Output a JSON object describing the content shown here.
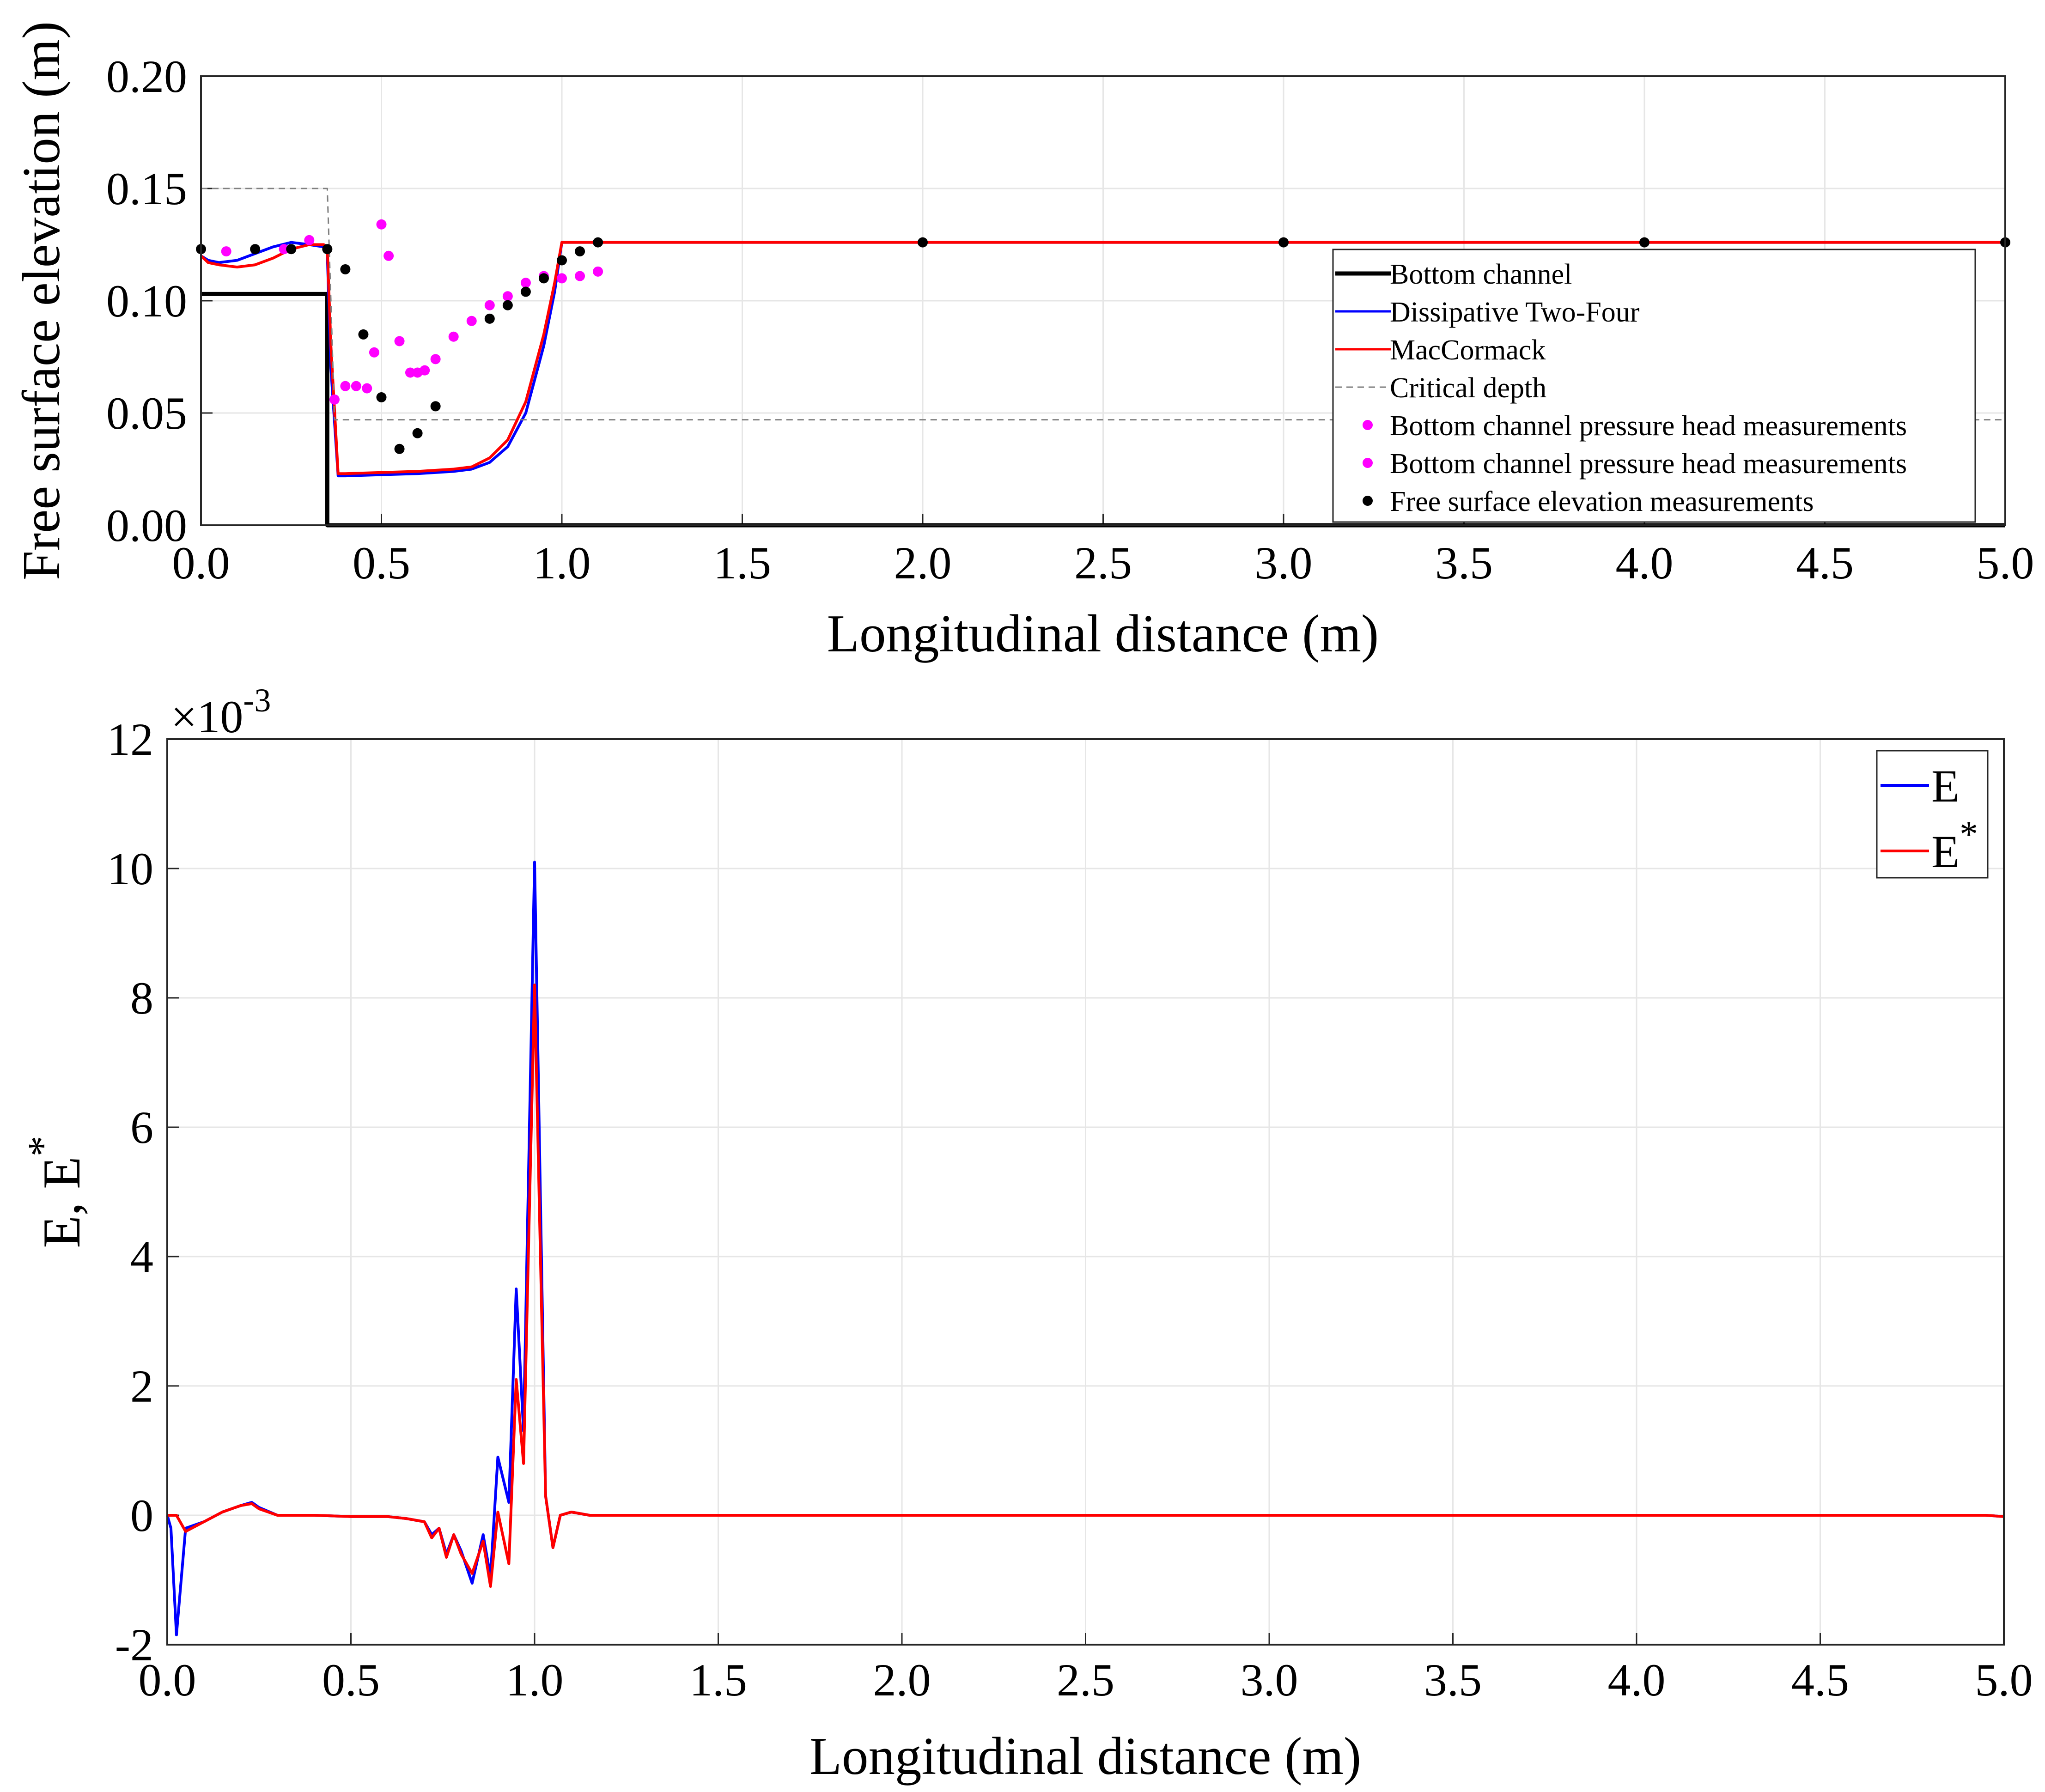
{
  "chart_data": [
    {
      "type": "line",
      "title": "",
      "xlabel": "Longitudinal distance (m)",
      "ylabel": "Free surface elevation (m)",
      "xlim": [
        0,
        5
      ],
      "ylim": [
        0,
        0.2
      ],
      "xticks": [
        0,
        0.5,
        1,
        1.5,
        2,
        2.5,
        3,
        3.5,
        4,
        4.5,
        5
      ],
      "xtick_labels": [
        "0.0",
        "0.5",
        "1.0",
        "1.5",
        "2.0",
        "2.5",
        "3.0",
        "3.5",
        "4.0",
        "4.5",
        "5.0"
      ],
      "yticks": [
        0,
        0.05,
        0.1,
        0.15,
        0.2
      ],
      "ytick_labels": [
        "0.00",
        "0.05",
        "0.10",
        "0.15",
        "0.20"
      ],
      "grid": true,
      "legend_position": "right",
      "series": [
        {
          "name": "Bottom channel",
          "color": "#000000",
          "style": "solid-thick",
          "x": [
            0,
            0.35,
            0.35,
            5
          ],
          "y": [
            0.103,
            0.103,
            0,
            0
          ]
        },
        {
          "name": "Dissipative Two-Four",
          "color": "#0000ff",
          "style": "solid",
          "x": [
            0,
            0.02,
            0.05,
            0.1,
            0.15,
            0.2,
            0.25,
            0.3,
            0.34,
            0.35,
            0.36,
            0.38,
            0.4,
            0.5,
            0.6,
            0.7,
            0.75,
            0.8,
            0.85,
            0.9,
            0.95,
            0.98,
            1.0,
            1.1,
            2,
            3,
            4,
            5
          ],
          "y": [
            0.12,
            0.118,
            0.117,
            0.118,
            0.121,
            0.124,
            0.126,
            0.125,
            0.124,
            0.121,
            0.07,
            0.022,
            0.022,
            0.0225,
            0.023,
            0.024,
            0.025,
            0.028,
            0.035,
            0.05,
            0.08,
            0.104,
            0.126,
            0.126,
            0.126,
            0.126,
            0.126,
            0.126
          ]
        },
        {
          "name": "MacCormack",
          "color": "#ff0000",
          "style": "solid",
          "x": [
            0,
            0.02,
            0.05,
            0.1,
            0.15,
            0.2,
            0.25,
            0.3,
            0.34,
            0.35,
            0.36,
            0.38,
            0.4,
            0.5,
            0.6,
            0.7,
            0.75,
            0.8,
            0.85,
            0.9,
            0.95,
            0.98,
            1.0,
            1.1,
            2,
            3,
            4,
            5
          ],
          "y": [
            0.12,
            0.117,
            0.116,
            0.115,
            0.116,
            0.119,
            0.123,
            0.125,
            0.125,
            0.124,
            0.08,
            0.023,
            0.023,
            0.0235,
            0.024,
            0.025,
            0.026,
            0.03,
            0.038,
            0.055,
            0.085,
            0.108,
            0.126,
            0.126,
            0.126,
            0.126,
            0.126,
            0.126
          ]
        },
        {
          "name": "Critical depth",
          "color": "#808080",
          "style": "dashed",
          "x": [
            0,
            0.35,
            0.36,
            0.37,
            5
          ],
          "y": [
            0.15,
            0.15,
            0.1,
            0.047,
            0.047
          ]
        },
        {
          "name": "Bottom channel pressure head measurements",
          "color": "#ff00ff",
          "style": "markers",
          "x": [
            0.07,
            0.23,
            0.3,
            0.37,
            0.4,
            0.43,
            0.46,
            0.48,
            0.5,
            0.52,
            0.55,
            0.58,
            0.6,
            0.62,
            0.65,
            0.7
          ],
          "y": [
            0.122,
            0.123,
            0.127,
            0.056,
            0.062,
            0.062,
            0.061,
            0.077,
            0.134,
            0.12,
            0.082,
            0.068,
            0.068,
            0.069,
            0.074,
            0.084
          ]
        },
        {
          "name": "Bottom channel pressure head measurements",
          "color": "#ff00ff",
          "style": "markers",
          "x": [
            0.75,
            0.8,
            0.85,
            0.9,
            0.95,
            1.0,
            1.05,
            1.1
          ],
          "y": [
            0.091,
            0.098,
            0.102,
            0.108,
            0.111,
            0.11,
            0.111,
            0.113
          ]
        },
        {
          "name": "Free surface elevation measurements",
          "color": "#000000",
          "style": "markers",
          "x": [
            0,
            0.15,
            0.25,
            0.35,
            0.4,
            0.45,
            0.5,
            0.55,
            0.6,
            0.65,
            0.8,
            0.85,
            0.9,
            0.95,
            1.0,
            1.05,
            1.1,
            2,
            3,
            4,
            5
          ],
          "y": [
            0.123,
            0.123,
            0.123,
            0.123,
            0.114,
            0.085,
            0.057,
            0.034,
            0.041,
            0.053,
            0.092,
            0.098,
            0.104,
            0.11,
            0.118,
            0.122,
            0.126,
            0.126,
            0.126,
            0.126,
            0.126
          ]
        }
      ]
    },
    {
      "type": "line",
      "title": "",
      "xlabel": "Longitudinal distance (m)",
      "ylabel": "E, E",
      "ylabel_superscript": "*",
      "y_multiplier": "×10",
      "y_multiplier_exponent": "-3",
      "xlim": [
        0,
        5
      ],
      "ylim": [
        -2,
        12
      ],
      "xticks": [
        0,
        0.5,
        1,
        1.5,
        2,
        2.5,
        3,
        3.5,
        4,
        4.5,
        5
      ],
      "xtick_labels": [
        "0.0",
        "0.5",
        "1.0",
        "1.5",
        "2.0",
        "2.5",
        "3.0",
        "3.5",
        "4.0",
        "4.5",
        "5.0"
      ],
      "yticks": [
        -2,
        0,
        2,
        4,
        6,
        8,
        10,
        12
      ],
      "ytick_labels": [
        "-2",
        "0",
        "2",
        "4",
        "6",
        "8",
        "10",
        "12"
      ],
      "grid": true,
      "legend_position": "top-right",
      "series": [
        {
          "name": "E",
          "legend_label": "E",
          "legend_superscript": "",
          "color": "#0000ff",
          "x": [
            0,
            0.01,
            0.025,
            0.05,
            0.1,
            0.15,
            0.2,
            0.23,
            0.25,
            0.3,
            0.4,
            0.5,
            0.6,
            0.65,
            0.7,
            0.72,
            0.74,
            0.76,
            0.78,
            0.8,
            0.83,
            0.86,
            0.88,
            0.9,
            0.93,
            0.95,
            0.97,
            1.0,
            1.03,
            1.05,
            1.07,
            1.1,
            1.15,
            1.2,
            2,
            3,
            4,
            4.95,
            5
          ],
          "y": [
            0,
            -0.2,
            -1.85,
            -0.2,
            -0.1,
            0.05,
            0.15,
            0.2,
            0.12,
            0,
            0,
            -0.02,
            -0.02,
            -0.05,
            -0.1,
            -0.3,
            -0.2,
            -0.6,
            -0.3,
            -0.55,
            -1.05,
            -0.3,
            -0.95,
            0.9,
            0.2,
            3.5,
            1.3,
            10.1,
            0.3,
            -0.5,
            0,
            0.05,
            0,
            0,
            0,
            0,
            0,
            0,
            -0.02
          ]
        },
        {
          "name": "E*",
          "legend_label": "E",
          "legend_superscript": "*",
          "color": "#ff0000",
          "x": [
            0,
            0.01,
            0.025,
            0.05,
            0.1,
            0.15,
            0.2,
            0.23,
            0.25,
            0.3,
            0.4,
            0.5,
            0.6,
            0.65,
            0.7,
            0.72,
            0.74,
            0.76,
            0.78,
            0.8,
            0.83,
            0.86,
            0.88,
            0.9,
            0.93,
            0.95,
            0.97,
            1.0,
            1.03,
            1.05,
            1.07,
            1.1,
            1.15,
            1.2,
            2,
            3,
            4,
            4.95,
            5
          ],
          "y": [
            0,
            0,
            0,
            -0.25,
            -0.1,
            0.05,
            0.15,
            0.18,
            0.1,
            0,
            0,
            -0.02,
            -0.02,
            -0.05,
            -0.1,
            -0.35,
            -0.2,
            -0.65,
            -0.3,
            -0.6,
            -0.9,
            -0.4,
            -1.1,
            0.05,
            -0.75,
            2.1,
            0.8,
            8.2,
            0.3,
            -0.5,
            0,
            0.05,
            0,
            0,
            0,
            0,
            0,
            0,
            -0.02
          ]
        }
      ]
    }
  ]
}
